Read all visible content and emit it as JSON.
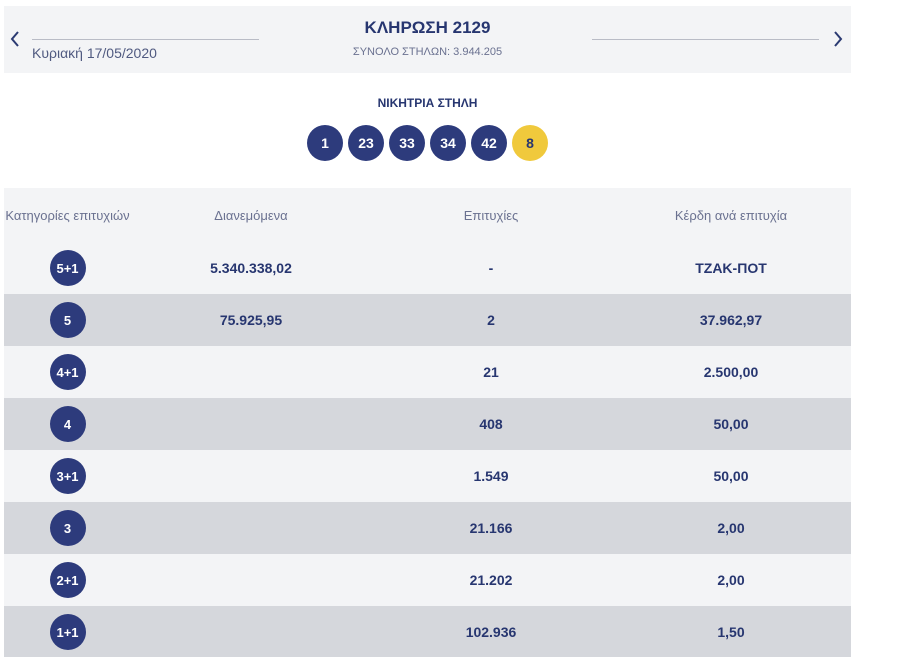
{
  "header": {
    "title": "ΚΛΗΡΩΣΗ 2129",
    "total_columns": "ΣΥΝΟΛΟ ΣΤΗΛΩΝ: 3.944.205",
    "date": "Κυριακή 17/05/2020",
    "prev_icon": "chevron-left-icon",
    "next_icon": "chevron-right-icon"
  },
  "winning": {
    "label": "ΝΙΚΗΤΡΙΑ ΣΤΗΛΗ",
    "numbers": [
      "1",
      "23",
      "33",
      "34",
      "42"
    ],
    "joker": "8",
    "colors": {
      "ball": "#2d3b7c",
      "joker": "#f0c93c"
    }
  },
  "table": {
    "headers": {
      "category": "Κατηγορίες επιτυχιών",
      "distributed": "Διανεμόμενα",
      "winners": "Επιτυχίες",
      "prize": "Κέρδη ανά επιτυχία"
    },
    "rows": [
      {
        "category": "5+1",
        "distributed": "5.340.338,02",
        "winners": "-",
        "prize": "ΤΖΑΚ-ΠΟΤ"
      },
      {
        "category": "5",
        "distributed": "75.925,95",
        "winners": "2",
        "prize": "37.962,97"
      },
      {
        "category": "4+1",
        "distributed": "",
        "winners": "21",
        "prize": "2.500,00"
      },
      {
        "category": "4",
        "distributed": "",
        "winners": "408",
        "prize": "50,00"
      },
      {
        "category": "3+1",
        "distributed": "",
        "winners": "1.549",
        "prize": "50,00"
      },
      {
        "category": "3",
        "distributed": "",
        "winners": "21.166",
        "prize": "2,00"
      },
      {
        "category": "2+1",
        "distributed": "",
        "winners": "21.202",
        "prize": "2,00"
      },
      {
        "category": "1+1",
        "distributed": "",
        "winners": "102.936",
        "prize": "1,50"
      }
    ]
  }
}
